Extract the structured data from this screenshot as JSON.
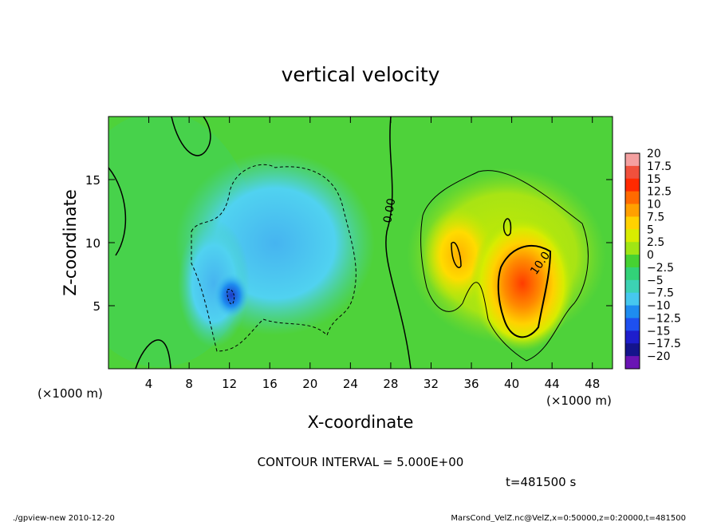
{
  "chart_data": {
    "type": "heatmap",
    "title": "vertical velocity",
    "xlabel": "X-coordinate",
    "ylabel": "Z-coordinate",
    "x_unit_left": "(×1000 m)",
    "x_unit_right": "(×1000 m)",
    "xlim": [
      0,
      50
    ],
    "ylim": [
      0,
      20
    ],
    "x_ticks": [
      4,
      8,
      12,
      16,
      20,
      24,
      28,
      32,
      36,
      40,
      44,
      48
    ],
    "y_ticks": [
      5,
      10,
      15
    ],
    "colorbar_levels": [
      "20",
      "17.5",
      "15",
      "12.5",
      "10",
      "7.5",
      "5",
      "2.5",
      "0",
      "−2.5",
      "−5",
      "−7.5",
      "−10",
      "−12.5",
      "−15",
      "−17.5",
      "−20"
    ],
    "colorbar_colors": [
      "#f4a0a0",
      "#f0503c",
      "#ff2a00",
      "#ff6a00",
      "#ffa000",
      "#ffd200",
      "#d8ec00",
      "#a0e614",
      "#46d232",
      "#32d278",
      "#3cd2b4",
      "#46c8ee",
      "#1e8cf0",
      "#1e50f0",
      "#1e1ecc",
      "#14148c",
      "#6a14b4"
    ],
    "contour_labels": [
      "0.00",
      "10.0"
    ],
    "contour_interval": "CONTOUR INTERVAL = 5.000E+00",
    "time": "t=481500 s",
    "grid": false,
    "legend": "colorbar-right",
    "features": [
      {
        "kind": "updraft",
        "center_x": 40,
        "center_z": 6.5,
        "peak": 15
      },
      {
        "kind": "updraft",
        "center_x": 33.5,
        "center_z": 9.5,
        "peak": 8
      },
      {
        "kind": "downdraft",
        "center_x": 18,
        "center_z": 10,
        "peak": -8
      },
      {
        "kind": "downdraft",
        "center_x": 12,
        "center_z": 6,
        "peak": -11
      }
    ]
  },
  "footer": {
    "left": "./gpview-new  2010-12-20",
    "right": "MarsCond_VelZ.nc@VelZ,x=0:50000,z=0:20000,t=481500"
  }
}
